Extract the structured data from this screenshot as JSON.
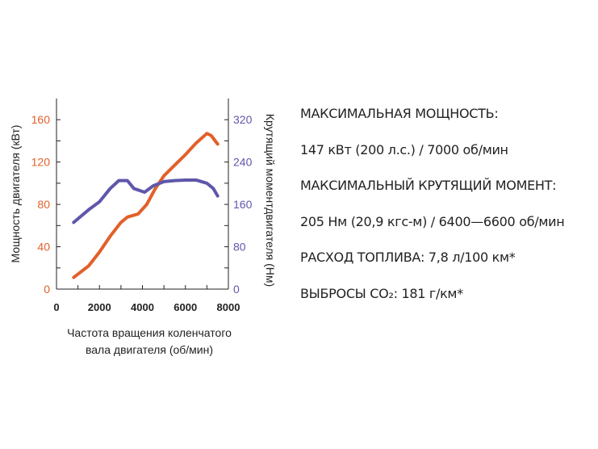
{
  "chart_data": {
    "type": "line",
    "xlabel": "Частота вращения коленчатого вала двигателя (об/мин)",
    "xlabel_lines": [
      "Частота вращения коленчатого",
      "вала двигателя (об/мин)"
    ],
    "ylabel": "Мощность двигателя (кВт)",
    "y2label": "Крутящий моментдвигателя (Нм)",
    "xlim": [
      0,
      8000
    ],
    "ylim": [
      0,
      180
    ],
    "y2lim": [
      0,
      360
    ],
    "xticks": [
      0,
      2000,
      4000,
      6000,
      8000
    ],
    "yticks": [
      0,
      40,
      80,
      120,
      160
    ],
    "y2ticks": [
      0,
      80,
      160,
      240,
      320
    ],
    "colors": {
      "power": "#e2602a",
      "torque": "#5f57aa",
      "axis": "#222222"
    },
    "series": [
      {
        "name": "Мощность",
        "axis": "left",
        "x": [
          800,
          1500,
          2000,
          2500,
          3000,
          3300,
          3800,
          4200,
          4600,
          5000,
          5500,
          6000,
          6500,
          7000,
          7200,
          7500
        ],
        "y": [
          11,
          22,
          35,
          50,
          63,
          68,
          71,
          80,
          95,
          107,
          117,
          127,
          138,
          147,
          145,
          137
        ]
      },
      {
        "name": "Крутящий момент",
        "axis": "right",
        "x": [
          800,
          1500,
          2000,
          2500,
          2900,
          3300,
          3600,
          4100,
          4500,
          5000,
          5500,
          6000,
          6500,
          7000,
          7300,
          7500
        ],
        "y": [
          126,
          150,
          165,
          190,
          205,
          205,
          190,
          183,
          195,
          203,
          205,
          206,
          206,
          200,
          190,
          176
        ]
      }
    ]
  },
  "specs": [
    "МАКСИМАЛЬНАЯ МОЩНОСТЬ:",
    "147 кВт (200 л.с.) / 7000 об/мин",
    "МАКСИМАЛЬНЫЙ КРУТЯЩИЙ МОМЕНТ:",
    "205 Нм (20,9 кгс-м) / 6400—6600 об/мин",
    "РАСХОД ТОПЛИВА: 7,8 л/100 км*",
    "ВЫБРОСЫ CO₂: 181 г/км*"
  ]
}
